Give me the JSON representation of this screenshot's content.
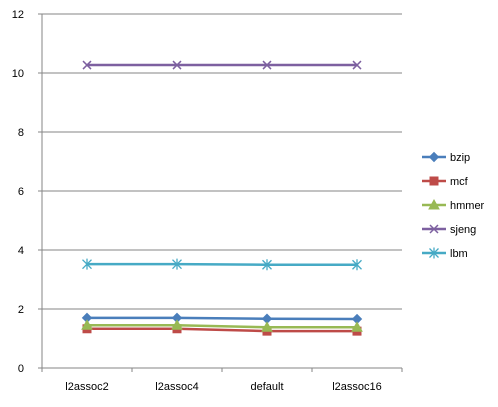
{
  "chart_data": {
    "type": "line",
    "title": "",
    "xlabel": "",
    "ylabel": "",
    "categories": [
      "l2assoc2",
      "l2assoc4",
      "default",
      "l2assoc16"
    ],
    "ylim": [
      0,
      12
    ],
    "yticks": [
      "0",
      "2",
      "4",
      "6",
      "8",
      "10",
      "12"
    ],
    "grid": "horizontal",
    "legend_position": "right",
    "series": [
      {
        "name": "bzip",
        "values": [
          1.7,
          1.7,
          1.67,
          1.66
        ],
        "color": "#4a7ebb",
        "marker": "diamond"
      },
      {
        "name": "mcf",
        "values": [
          1.33,
          1.33,
          1.25,
          1.25
        ],
        "color": "#be4b48",
        "marker": "square"
      },
      {
        "name": "hmmer",
        "values": [
          1.45,
          1.45,
          1.38,
          1.38
        ],
        "color": "#98b954",
        "marker": "triangle"
      },
      {
        "name": "sjeng",
        "values": [
          10.27,
          10.27,
          10.27,
          10.27
        ],
        "color": "#7d60a0",
        "marker": "x"
      },
      {
        "name": "lbm",
        "values": [
          3.52,
          3.52,
          3.5,
          3.5
        ],
        "color": "#46aac5",
        "marker": "star"
      }
    ]
  }
}
